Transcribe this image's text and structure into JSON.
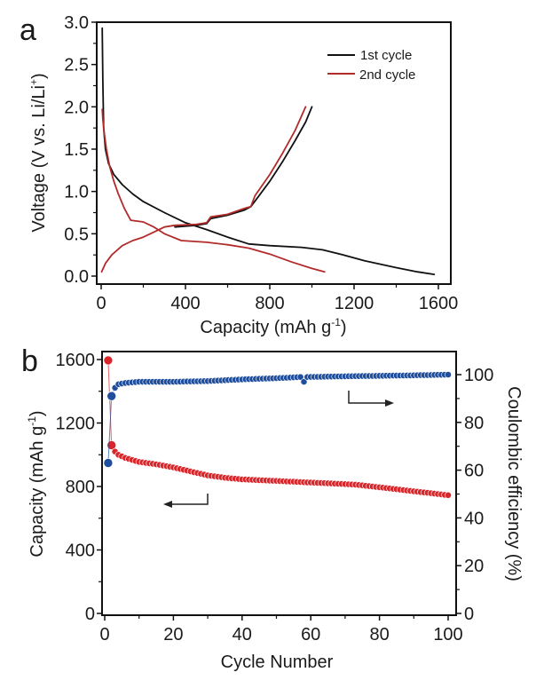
{
  "chart_data": [
    {
      "panel": "a",
      "type": "line",
      "title": "",
      "xlabel": "Capacity (mAh g",
      "xlabel_sup": "-1",
      "xlabel_tail": ")",
      "ylabel": "Voltage (V vs. Li/Li",
      "ylabel_sup": "+",
      "ylabel_tail": ")",
      "xlim": [
        -25,
        1650
      ],
      "ylim": [
        -0.1,
        3.0
      ],
      "xticks": [
        0,
        400,
        800,
        1200,
        1600
      ],
      "xtick_labels": [
        "0",
        "400",
        "800",
        "1200",
        "1600"
      ],
      "yticks": [
        0.0,
        0.5,
        1.0,
        1.5,
        2.0,
        2.5,
        3.0
      ],
      "ytick_labels": [
        "0.0",
        "0.5",
        "1.0",
        "1.5",
        "2.0",
        "2.5",
        "3.0"
      ],
      "legend": {
        "placement": "top-right",
        "entries": [
          "1st cycle",
          "2nd cycle"
        ]
      },
      "grid": false,
      "series": [
        {
          "name": "1st cycle",
          "role": "discharge",
          "color": "#111111",
          "x": [
            5,
            8,
            12,
            20,
            35,
            60,
            100,
            150,
            200,
            300,
            400,
            500,
            600,
            700,
            800,
            950,
            1050,
            1150,
            1250,
            1400,
            1500,
            1580
          ],
          "y": [
            2.93,
            2.3,
            1.75,
            1.5,
            1.33,
            1.2,
            1.08,
            0.97,
            0.88,
            0.75,
            0.63,
            0.55,
            0.46,
            0.38,
            0.36,
            0.34,
            0.31,
            0.25,
            0.18,
            0.1,
            0.05,
            0.02
          ]
        },
        {
          "name": "1st cycle",
          "role": "charge",
          "color": "#111111",
          "x": [
            350,
            450,
            500,
            520,
            600,
            680,
            710,
            740,
            800,
            860,
            920,
            970,
            1000
          ],
          "y": [
            0.58,
            0.6,
            0.62,
            0.68,
            0.72,
            0.78,
            0.82,
            0.92,
            1.12,
            1.35,
            1.6,
            1.82,
            2.0
          ]
        },
        {
          "name": "2nd cycle",
          "role": "discharge",
          "color": "#b22a2a",
          "x": [
            5,
            8,
            15,
            25,
            40,
            60,
            80,
            110,
            140,
            200,
            250,
            300,
            380,
            500,
            600,
            700,
            800,
            900,
            1000,
            1060
          ],
          "y": [
            1.97,
            1.85,
            1.68,
            1.5,
            1.3,
            1.12,
            0.98,
            0.8,
            0.66,
            0.64,
            0.58,
            0.5,
            0.42,
            0.4,
            0.37,
            0.33,
            0.26,
            0.17,
            0.09,
            0.05
          ]
        },
        {
          "name": "2nd cycle",
          "role": "charge",
          "color": "#b22a2a",
          "x": [
            2,
            20,
            50,
            100,
            150,
            200,
            250,
            300,
            350,
            450,
            500,
            520,
            600,
            680,
            710,
            730,
            800,
            860,
            920,
            970
          ],
          "y": [
            0.05,
            0.15,
            0.25,
            0.36,
            0.42,
            0.46,
            0.52,
            0.58,
            0.6,
            0.61,
            0.63,
            0.7,
            0.73,
            0.8,
            0.82,
            0.95,
            1.2,
            1.45,
            1.72,
            2.0
          ]
        }
      ]
    },
    {
      "panel": "b",
      "type": "scatter",
      "title": "",
      "xlabel": "Cycle Number",
      "ylabel": "Capacity (mAh g",
      "ylabel_sup": "-1",
      "ylabel_tail": ")",
      "y2label": "Coulombic efficiency (%)",
      "xlim": [
        -1,
        102
      ],
      "ylim": [
        0,
        1650
      ],
      "y2lim": [
        0,
        110
      ],
      "xticks": [
        0,
        20,
        40,
        60,
        80,
        100
      ],
      "xtick_labels": [
        "0",
        "20",
        "40",
        "60",
        "80",
        "100"
      ],
      "yticks": [
        0,
        400,
        800,
        1200,
        1600
      ],
      "ytick_labels": [
        "0",
        "400",
        "800",
        "1200",
        "1600"
      ],
      "y2ticks": [
        0,
        20,
        40,
        60,
        80,
        100
      ],
      "y2tick_labels": [
        "0",
        "20",
        "40",
        "60",
        "80",
        "100"
      ],
      "grid": false,
      "annotations": [
        {
          "type": "arrow",
          "points_to": "left-axis",
          "series": "Capacity"
        },
        {
          "type": "arrow",
          "points_to": "right-axis",
          "series": "Coulombic efficiency"
        }
      ],
      "series": [
        {
          "name": "Capacity",
          "axis": "left",
          "color": "#d8262b",
          "keypoints_x": [
            1,
            2,
            3,
            4,
            6,
            10,
            15,
            20,
            25,
            30,
            35,
            40,
            47,
            55,
            60,
            73,
            80,
            90,
            100
          ],
          "keypoints_y": [
            1595,
            1060,
            1020,
            1000,
            980,
            955,
            940,
            920,
            895,
            870,
            855,
            845,
            838,
            830,
            825,
            812,
            795,
            770,
            745
          ]
        },
        {
          "name": "Coulombic efficiency",
          "axis": "right",
          "color": "#1f4e9c",
          "keypoints_x": [
            1,
            2,
            3,
            4,
            6,
            10,
            20,
            30,
            40,
            50,
            57,
            58,
            59,
            70,
            80,
            90,
            100
          ],
          "keypoints_y": [
            63,
            91,
            94.5,
            96,
            96.5,
            97,
            97,
            97.3,
            98,
            98.5,
            99,
            97,
            99,
            99.3,
            99.5,
            99.7,
            100
          ]
        }
      ]
    }
  ],
  "labels": {
    "panel_a": "a",
    "panel_b": "b"
  }
}
